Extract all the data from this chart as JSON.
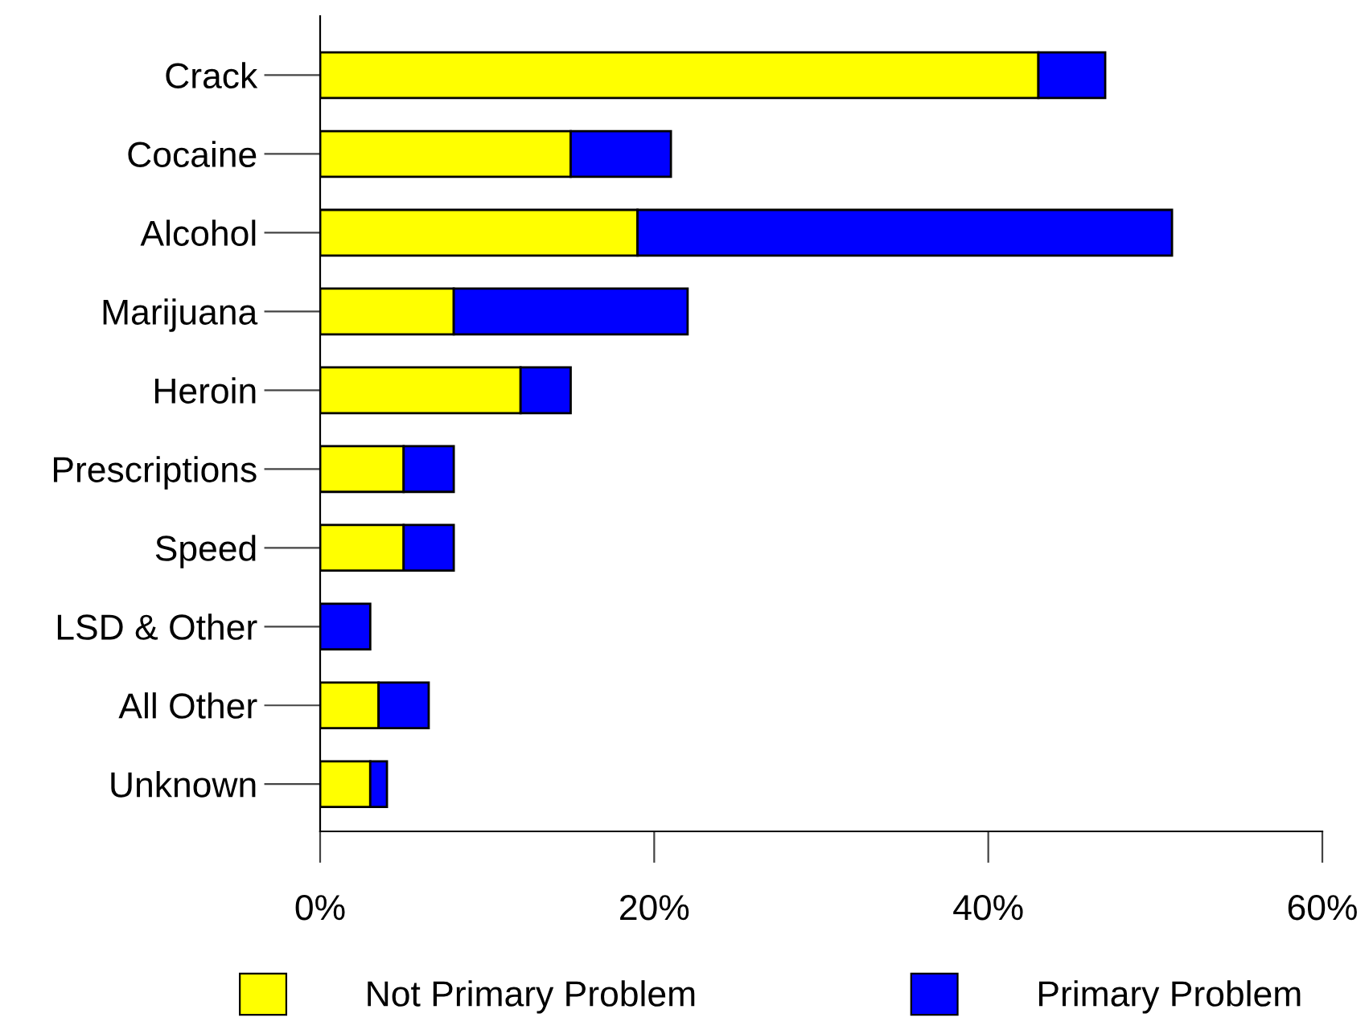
{
  "chart_data": {
    "type": "bar",
    "orientation": "horizontal",
    "stacked": true,
    "categories": [
      "Crack",
      "Cocaine",
      "Alcohol",
      "Marijuana",
      "Heroin",
      "Prescriptions",
      "Speed",
      "LSD & Other",
      "All Other",
      "Unknown"
    ],
    "series": [
      {
        "name": "Not Primary Problem",
        "color": "#ffff00",
        "values": [
          43,
          15,
          19,
          8,
          12,
          5,
          5,
          0,
          3.5,
          3
        ]
      },
      {
        "name": "Primary Problem",
        "color": "#0000ff",
        "values": [
          4,
          6,
          32,
          14,
          3,
          3,
          3,
          3,
          3,
          1
        ]
      }
    ],
    "xlim": [
      0,
      60
    ],
    "xticks": [
      {
        "value": 0,
        "label": "0%"
      },
      {
        "value": 20,
        "label": "20%"
      },
      {
        "value": 40,
        "label": "40%"
      },
      {
        "value": 60,
        "label": "60%"
      }
    ],
    "legend": "bottom",
    "grid": false
  }
}
